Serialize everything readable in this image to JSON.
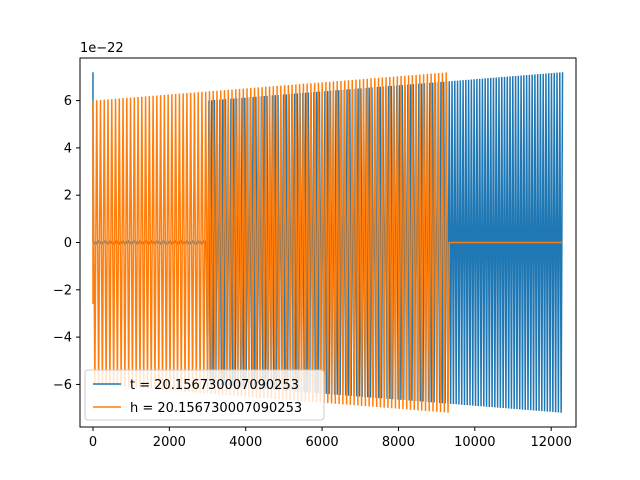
{
  "chart_data": {
    "type": "line",
    "title": "",
    "xlabel": "",
    "ylabel": "",
    "y_offset_label": "1e−22",
    "xlim": [
      -340,
      12650
    ],
    "ylim": [
      -7.8,
      7.8
    ],
    "xticks": [
      0,
      2000,
      4000,
      6000,
      8000,
      10000,
      12000
    ],
    "xtick_labels": [
      "0",
      "2000",
      "4000",
      "6000",
      "8000",
      "10000",
      "12000"
    ],
    "yticks": [
      -6,
      -4,
      -2,
      0,
      2,
      4,
      6
    ],
    "ytick_labels": [
      "−6",
      "−4",
      "−2",
      "0",
      "2",
      "4",
      "6"
    ],
    "grid": false,
    "legend_position": "lower-left",
    "series": [
      {
        "name": "t = 20.156730007090253",
        "color": "#1f77b4",
        "oscillation_cycles": 170,
        "segments": [
          {
            "x_start": 0,
            "x_end": 3000,
            "amplitude_start": 7.2,
            "amplitude_end": 7.2,
            "note": "near zero with a spike at start"
          },
          {
            "x_start": 3000,
            "x_end": 12300,
            "amplitude_start": 6.0,
            "amplitude_end": 7.2
          }
        ],
        "initial_spike": 7.2
      },
      {
        "name": "h = 20.156730007090253",
        "color": "#ff7f0e",
        "oscillation_cycles": 125,
        "segments": [
          {
            "x_start": 0,
            "x_end": 9330,
            "amplitude_start": 6.0,
            "amplitude_end": 7.2
          },
          {
            "x_start": 9330,
            "x_end": 12300,
            "amplitude_start": 0,
            "amplitude_end": 0
          }
        ],
        "initial_value": -2.6
      }
    ]
  }
}
